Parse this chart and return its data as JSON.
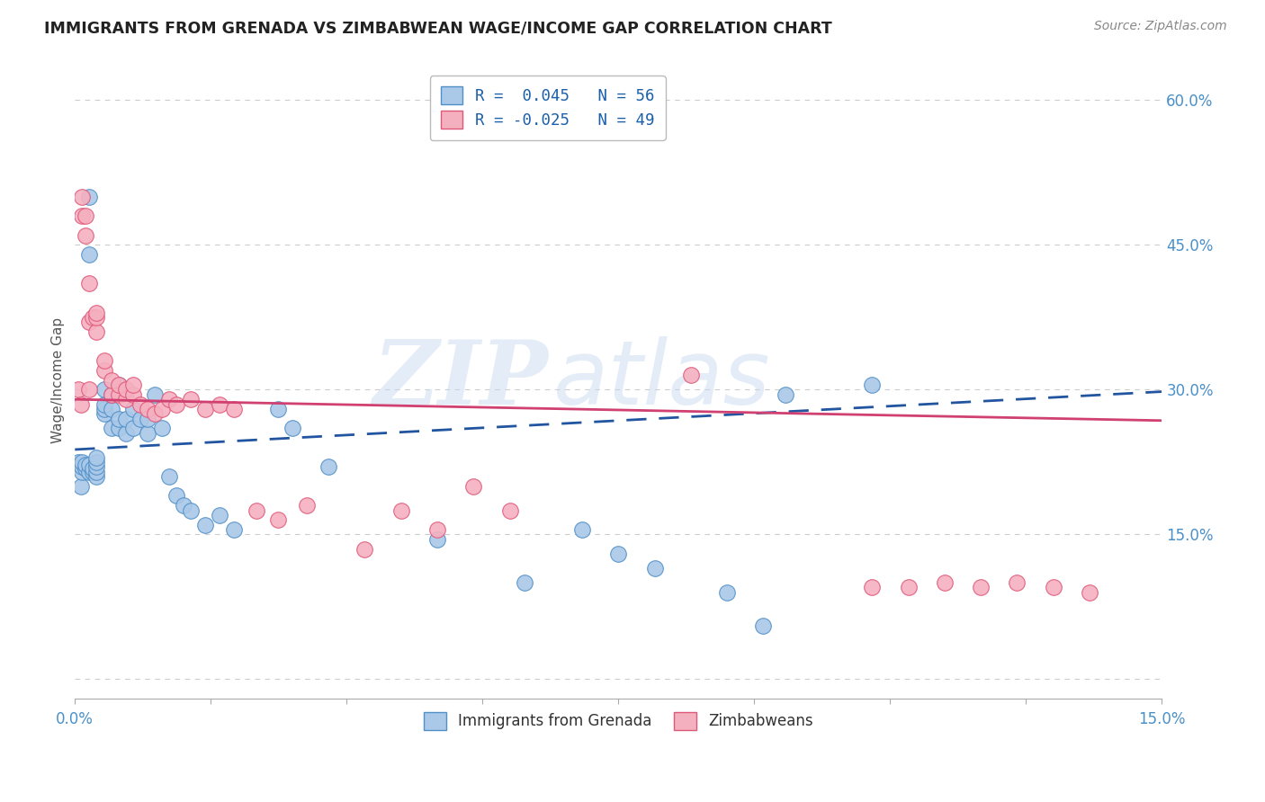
{
  "title": "IMMIGRANTS FROM GRENADA VS ZIMBABWEAN WAGE/INCOME GAP CORRELATION CHART",
  "source": "Source: ZipAtlas.com",
  "ylabel": "Wage/Income Gap",
  "yticks": [
    0.0,
    0.15,
    0.3,
    0.45,
    0.6
  ],
  "ytick_labels": [
    "",
    "15.0%",
    "30.0%",
    "45.0%",
    "60.0%"
  ],
  "xlim": [
    0.0,
    0.15
  ],
  "ylim": [
    -0.02,
    0.64
  ],
  "legend_label1": "R =  0.045   N = 56",
  "legend_label2": "R = -0.025   N = 49",
  "legend_bottom1": "Immigrants from Grenada",
  "legend_bottom2": "Zimbabweans",
  "color_blue": "#aac8e8",
  "color_pink": "#f5b0c0",
  "color_blue_dark": "#5090c8",
  "color_pink_dark": "#e05878",
  "trendline_blue_color": "#2255a0",
  "trendline_pink_color": "#d04070",
  "blue_scatter_x": [
    0.0005,
    0.0008,
    0.001,
    0.001,
    0.001,
    0.0015,
    0.0015,
    0.002,
    0.002,
    0.002,
    0.002,
    0.0025,
    0.0025,
    0.003,
    0.003,
    0.003,
    0.003,
    0.003,
    0.004,
    0.004,
    0.004,
    0.004,
    0.005,
    0.005,
    0.005,
    0.006,
    0.006,
    0.006,
    0.007,
    0.007,
    0.008,
    0.008,
    0.009,
    0.01,
    0.01,
    0.011,
    0.012,
    0.013,
    0.014,
    0.015,
    0.016,
    0.018,
    0.02,
    0.022,
    0.028,
    0.03,
    0.035,
    0.05,
    0.062,
    0.07,
    0.075,
    0.08,
    0.09,
    0.095,
    0.098,
    0.11
  ],
  "blue_scatter_y": [
    0.225,
    0.2,
    0.215,
    0.22,
    0.225,
    0.218,
    0.222,
    0.44,
    0.5,
    0.215,
    0.222,
    0.215,
    0.218,
    0.21,
    0.215,
    0.22,
    0.225,
    0.23,
    0.275,
    0.28,
    0.285,
    0.3,
    0.26,
    0.28,
    0.295,
    0.26,
    0.27,
    0.305,
    0.255,
    0.27,
    0.26,
    0.28,
    0.27,
    0.255,
    0.27,
    0.295,
    0.26,
    0.21,
    0.19,
    0.18,
    0.175,
    0.16,
    0.17,
    0.155,
    0.28,
    0.26,
    0.22,
    0.145,
    0.1,
    0.155,
    0.13,
    0.115,
    0.09,
    0.055,
    0.295,
    0.305
  ],
  "pink_scatter_x": [
    0.0005,
    0.0008,
    0.001,
    0.001,
    0.0015,
    0.0015,
    0.002,
    0.002,
    0.002,
    0.0025,
    0.003,
    0.003,
    0.003,
    0.004,
    0.004,
    0.005,
    0.005,
    0.006,
    0.006,
    0.007,
    0.007,
    0.008,
    0.008,
    0.009,
    0.01,
    0.011,
    0.012,
    0.013,
    0.014,
    0.016,
    0.018,
    0.02,
    0.022,
    0.025,
    0.028,
    0.032,
    0.04,
    0.045,
    0.05,
    0.055,
    0.06,
    0.085,
    0.11,
    0.115,
    0.12,
    0.125,
    0.13,
    0.135,
    0.14
  ],
  "pink_scatter_y": [
    0.3,
    0.285,
    0.48,
    0.5,
    0.46,
    0.48,
    0.41,
    0.37,
    0.3,
    0.375,
    0.36,
    0.375,
    0.38,
    0.32,
    0.33,
    0.295,
    0.31,
    0.295,
    0.305,
    0.29,
    0.3,
    0.295,
    0.305,
    0.285,
    0.28,
    0.275,
    0.28,
    0.29,
    0.285,
    0.29,
    0.28,
    0.285,
    0.28,
    0.175,
    0.165,
    0.18,
    0.135,
    0.175,
    0.155,
    0.2,
    0.175,
    0.315,
    0.095,
    0.095,
    0.1,
    0.095,
    0.1,
    0.095,
    0.09
  ],
  "blue_trend_x": [
    0.0,
    0.15
  ],
  "blue_trend_y": [
    0.238,
    0.298
  ],
  "pink_trend_x": [
    0.0,
    0.15
  ],
  "pink_trend_y": [
    0.29,
    0.268
  ],
  "watermark_zip": "ZIP",
  "watermark_atlas": "atlas",
  "background_color": "#ffffff",
  "grid_color": "#cccccc"
}
